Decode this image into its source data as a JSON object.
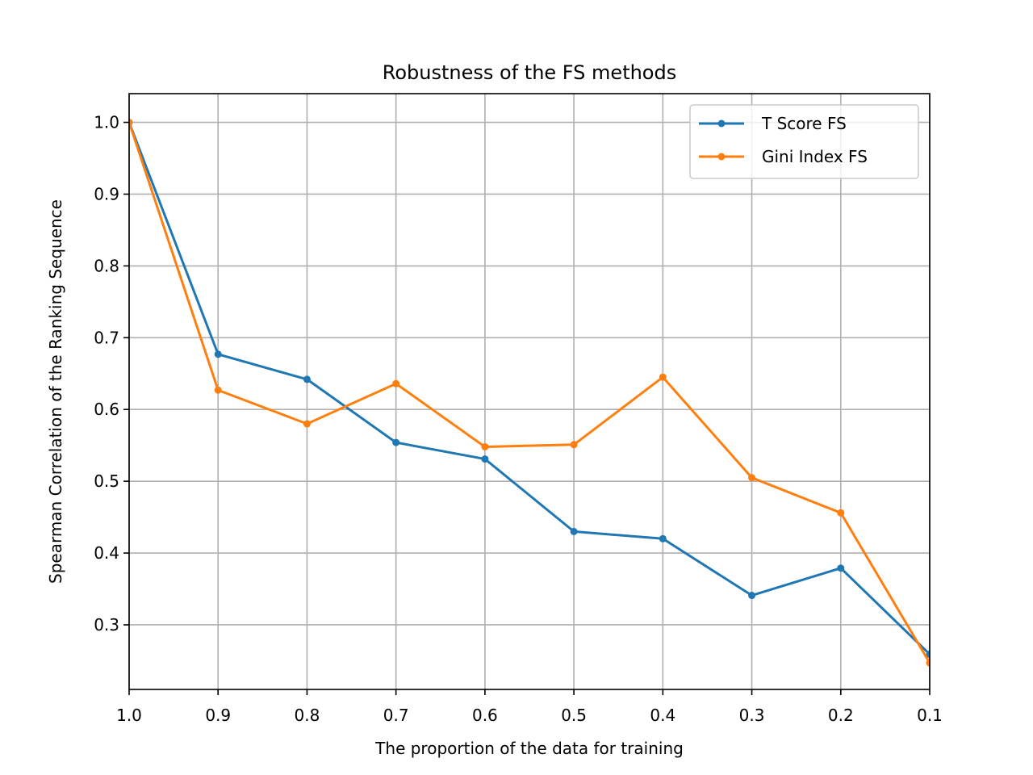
{
  "chart_data": {
    "type": "line",
    "title": "Robustness of the FS methods",
    "xlabel": "The proportion of the data for training",
    "ylabel": "Spearman Correlation of the Ranking Sequence",
    "x": [
      1.0,
      0.9,
      0.8,
      0.7,
      0.6,
      0.5,
      0.4,
      0.3,
      0.2,
      0.1
    ],
    "xlim": [
      1.0,
      0.1
    ],
    "x_inverted": true,
    "x_tick_labels": [
      "1.0",
      "0.9",
      "0.8",
      "0.7",
      "0.6",
      "0.5",
      "0.4",
      "0.3",
      "0.2",
      "0.1"
    ],
    "ylim": [
      0.21,
      1.04
    ],
    "y_ticks": [
      0.3,
      0.4,
      0.5,
      0.6,
      0.7,
      0.8,
      0.9,
      1.0
    ],
    "y_tick_labels": [
      "0.3",
      "0.4",
      "0.5",
      "0.6",
      "0.7",
      "0.8",
      "0.9",
      "1.0"
    ],
    "grid": true,
    "legend_position": "upper-right",
    "series": [
      {
        "name": "T Score FS",
        "color": "#1f77b4",
        "marker": "dot",
        "values": [
          1.0,
          0.677,
          0.642,
          0.554,
          0.531,
          0.43,
          0.42,
          0.341,
          0.379,
          0.259
        ]
      },
      {
        "name": "Gini Index FS",
        "color": "#ff7f0e",
        "marker": "dot",
        "values": [
          1.0,
          0.627,
          0.58,
          0.636,
          0.548,
          0.551,
          0.645,
          0.505,
          0.456,
          0.247
        ]
      }
    ]
  }
}
